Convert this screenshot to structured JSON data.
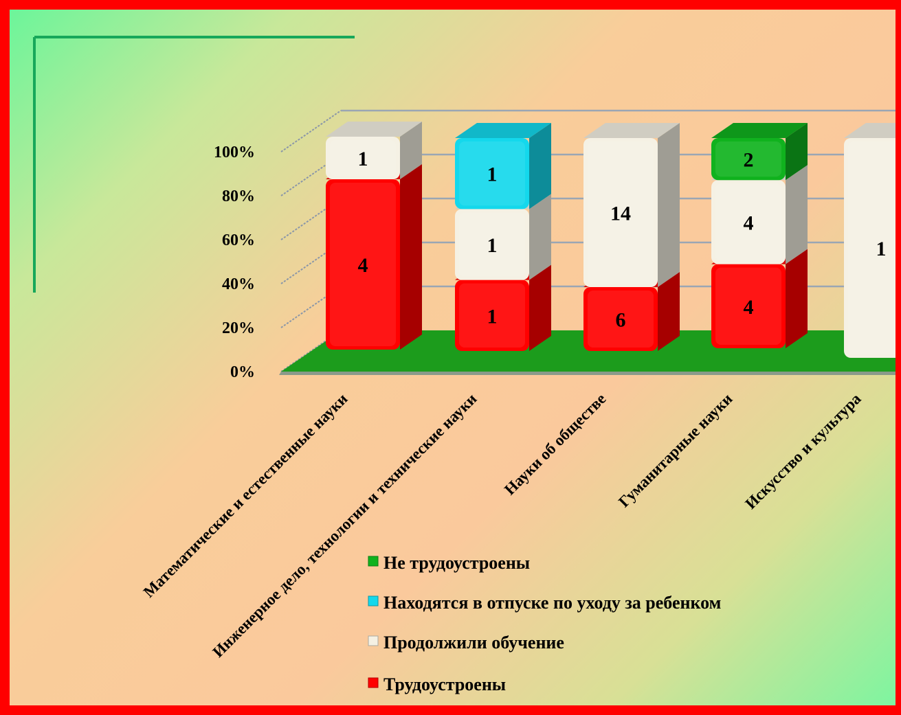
{
  "chart_data": {
    "type": "bar",
    "stacked": "percent",
    "three_d": true,
    "y_ticks": [
      "0%",
      "20%",
      "40%",
      "60%",
      "80%",
      "100%"
    ],
    "ylim": [
      0,
      100
    ],
    "grid": true,
    "legend_position": "bottom-right",
    "categories": [
      "Математические и естественные науки",
      "Инженерное дело, технологии и технические науки",
      "Науки об обществе",
      "Гуманитарные науки",
      "Искусство и культура"
    ],
    "series": [
      {
        "name": "Трудоустроены",
        "color": "#ff0000",
        "values": [
          4,
          1,
          6,
          4,
          0
        ]
      },
      {
        "name": "Продолжили обучение",
        "color": "#f5f1e4",
        "values": [
          1,
          1,
          14,
          4,
          1
        ]
      },
      {
        "name": "Находятся в отпуске по уходу за ребенком",
        "color": "#14d8ec",
        "values": [
          0,
          1,
          0,
          0,
          0
        ]
      },
      {
        "name": "Не трудоустроены",
        "color": "#10b21e",
        "values": [
          0,
          0,
          0,
          2,
          0
        ]
      }
    ],
    "legend_order": [
      "Не трудоустроены",
      "Находятся в отпуске по уходу за ребенком",
      "Продолжили обучение",
      "Трудоустроены"
    ]
  }
}
